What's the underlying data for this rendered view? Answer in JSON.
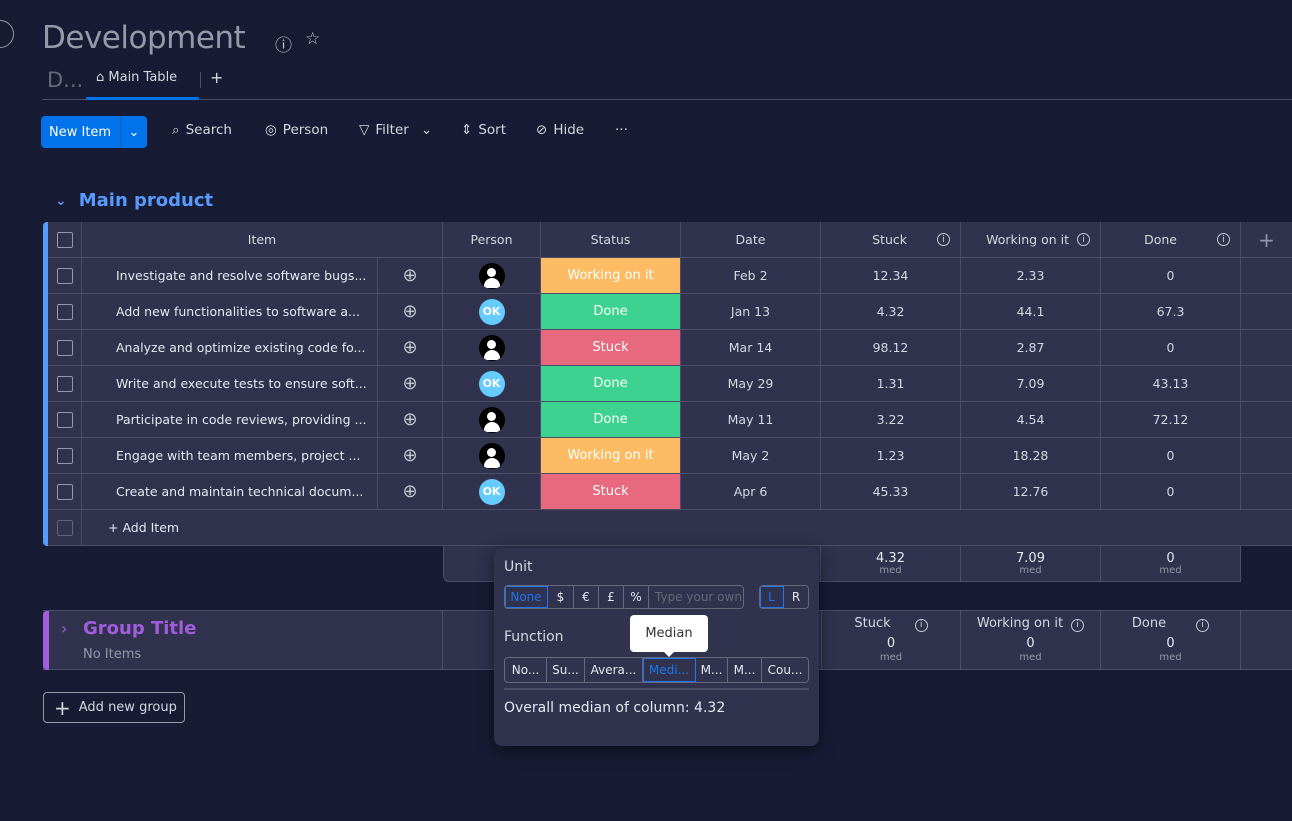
{
  "board": {
    "title": "Development",
    "tab_collapsed": "D...",
    "tab_main": "Main Table",
    "tab_add": "+"
  },
  "toolbar": {
    "new_item": "New Item",
    "search": "Search",
    "person": "Person",
    "filter": "Filter",
    "sort": "Sort",
    "hide": "Hide",
    "more": "···"
  },
  "group1": {
    "title": "Main product",
    "color": "#579bfc",
    "columns": [
      "Item",
      "Person",
      "Status",
      "Date",
      "Stuck",
      "Working on it",
      "Done"
    ],
    "rows": [
      {
        "item": "Investigate and resolve software bugs...",
        "person": "avatar",
        "status": "Working on it",
        "date": "Feb 2",
        "stuck": "12.34",
        "working": "2.33",
        "done": "0"
      },
      {
        "item": "Add new functionalities to software a...",
        "person": "OK",
        "status": "Done",
        "date": "Jan 13",
        "stuck": "4.32",
        "working": "44.1",
        "done": "67.3"
      },
      {
        "item": "Analyze and optimize existing code fo...",
        "person": "avatar",
        "status": "Stuck",
        "date": "Mar 14",
        "stuck": "98.12",
        "working": "2.87",
        "done": "0"
      },
      {
        "item": "Write and execute tests to ensure soft...",
        "person": "OK",
        "status": "Done",
        "date": "May 29",
        "stuck": "1.31",
        "working": "7.09",
        "done": "43.13"
      },
      {
        "item": "Participate in code reviews, providing ...",
        "person": "avatar",
        "status": "Done",
        "date": "May 11",
        "stuck": "3.22",
        "working": "4.54",
        "done": "72.12"
      },
      {
        "item": "Engage with team members, project ...",
        "person": "avatar",
        "status": "Working on it",
        "date": "May 2",
        "stuck": "1.23",
        "working": "18.28",
        "done": "0"
      },
      {
        "item": "Create and maintain technical docum...",
        "person": "OK",
        "status": "Stuck",
        "date": "Apr 6",
        "stuck": "45.33",
        "working": "12.76",
        "done": "0"
      }
    ],
    "add_item": "+ Add Item",
    "summary": {
      "stuck": "4.32",
      "working": "7.09",
      "done": "0",
      "label": "med"
    }
  },
  "status_colors": {
    "Working on it": "#fdbc64",
    "Done": "#3dd28f",
    "Stuck": "#e8697d"
  },
  "group2": {
    "title": "Group Title",
    "subtitle": "No Items",
    "color": "#a25ddc",
    "columns": [
      "Stuck",
      "Working on it",
      "Done"
    ],
    "values": [
      "0",
      "0",
      "0"
    ],
    "label": "med"
  },
  "add_group": "Add new group",
  "popup": {
    "unit_label": "Unit",
    "units": [
      "None",
      "$",
      "€",
      "£",
      "%"
    ],
    "unit_placeholder": "Type your own",
    "align": [
      "L",
      "R"
    ],
    "function_label": "Function",
    "functions": [
      "No...",
      "Su...",
      "Avera...",
      "Medi...",
      "M...",
      "M...",
      "Cou..."
    ],
    "selected_function": "Medi...",
    "tooltip": "Median",
    "result": "Overall median of column: 4.32"
  }
}
